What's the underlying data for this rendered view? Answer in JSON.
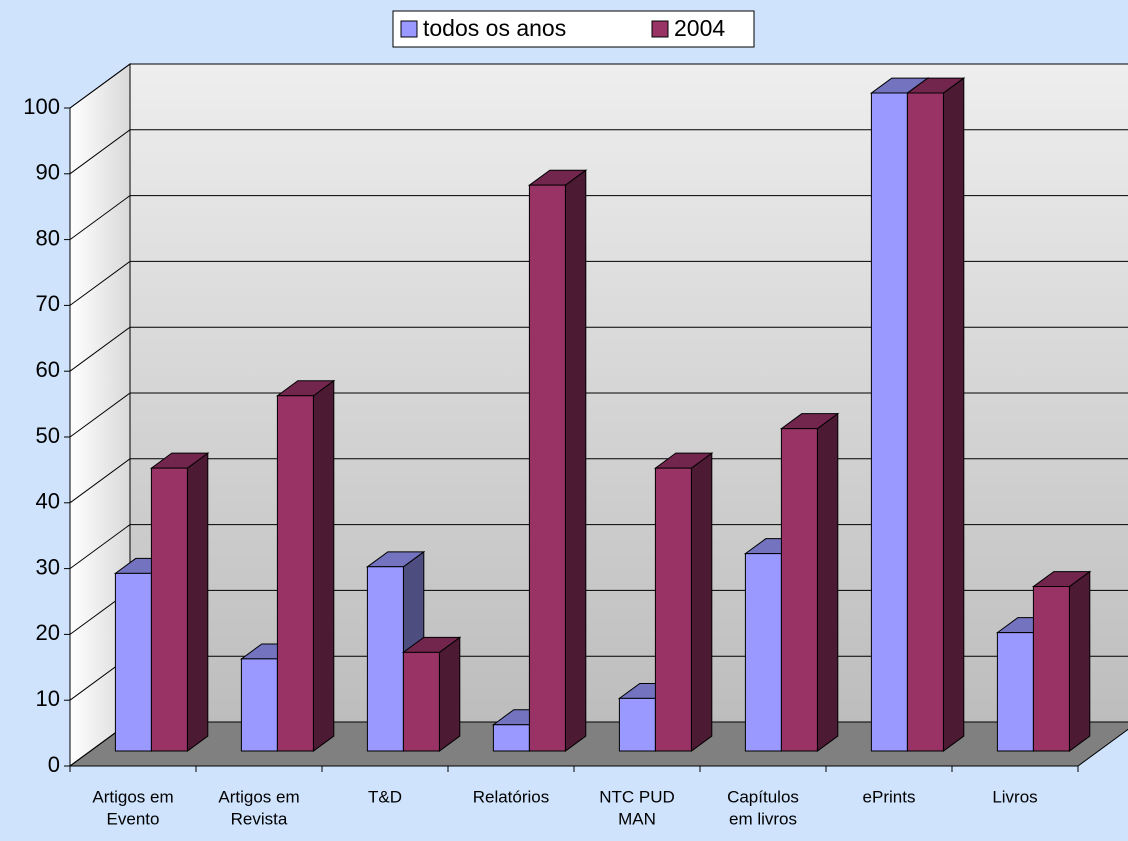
{
  "chart_data": {
    "type": "bar3d",
    "categories": [
      [
        "Artigos em",
        "Evento"
      ],
      [
        "Artigos em",
        "Revista"
      ],
      [
        "T&D"
      ],
      [
        "Relatórios"
      ],
      [
        "NTC PUD",
        "MAN"
      ],
      [
        "Capítulos",
        "em livros"
      ],
      [
        "ePrints"
      ],
      [
        "Livros"
      ]
    ],
    "series": [
      {
        "name": "todos os anos",
        "color": "#9999ff",
        "values": [
          27,
          14,
          28,
          4,
          8,
          30,
          100,
          18
        ]
      },
      {
        "name": "2004",
        "color": "#993366",
        "values": [
          43,
          54,
          15,
          86,
          43,
          49,
          100,
          25
        ]
      }
    ],
    "ylim": [
      0,
      100
    ],
    "yticks": [
      0,
      10,
      20,
      30,
      40,
      50,
      60,
      70,
      80,
      90,
      100
    ],
    "grid": true,
    "legend": "top"
  }
}
